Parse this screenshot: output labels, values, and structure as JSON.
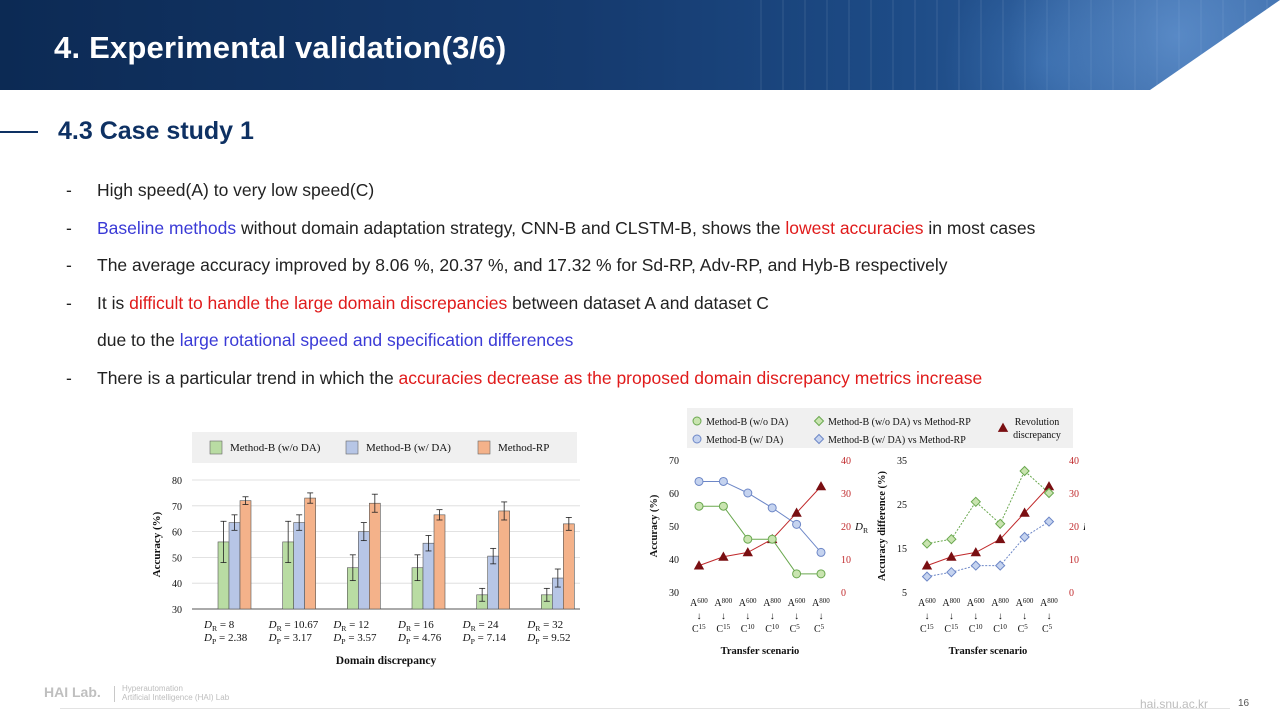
{
  "header": {
    "title": "4. Experimental validation(3/6)"
  },
  "section": {
    "title": "4.3 Case study 1"
  },
  "bullets": [
    {
      "dash": "-",
      "segments": [
        {
          "text": "High speed(A) to very low speed(C)",
          "style": "normal"
        }
      ]
    },
    {
      "dash": "-",
      "segments": [
        {
          "text": "Baseline methods",
          "style": "blue"
        },
        {
          "text": " without domain adaptation strategy, CNN-B and CLSTM-B, shows the ",
          "style": "normal"
        },
        {
          "text": "lowest accuracies",
          "style": "red"
        },
        {
          "text": " in most cases",
          "style": "normal"
        }
      ]
    },
    {
      "dash": "-",
      "segments": [
        {
          "text": "The average accuracy improved by 8.06 %, 20.37 %, and 17.32 % for Sd-RP, Adv-RP, and Hyb-B respectively",
          "style": "normal"
        }
      ]
    },
    {
      "dash": "-",
      "segments": [
        {
          "text": " It is ",
          "style": "normal"
        },
        {
          "text": "difficult to handle the large domain discrepancies",
          "style": "red"
        },
        {
          "text": " between dataset A and dataset C",
          "style": "normal"
        }
      ]
    },
    {
      "dash": "",
      "segments": [
        {
          "text": "due to the ",
          "style": "normal"
        },
        {
          "text": "large rotational speed and specification differences",
          "style": "blue"
        }
      ]
    },
    {
      "dash": "-",
      "segments": [
        {
          "text": "There is a particular trend in which the ",
          "style": "normal"
        },
        {
          "text": "accuracies decrease as the proposed domain discrepancy metrics increase",
          "style": "red"
        }
      ]
    }
  ],
  "chart_data": [
    {
      "type": "bar",
      "legend": [
        "Method-B (w/o DA)",
        "Method-B (w/ DA)",
        "Method-RP"
      ],
      "colors": [
        "#b9dca3",
        "#b7c6e6",
        "#f4b28a"
      ],
      "categories": [
        [
          "D_R = 8",
          "D_P = 2.38"
        ],
        [
          "D_R = 10.67",
          "D_P = 3.17"
        ],
        [
          "D_R = 12",
          "D_P = 3.57"
        ],
        [
          "D_R = 16",
          "D_P = 4.76"
        ],
        [
          "D_R = 24",
          "D_P = 7.14"
        ],
        [
          "D_R = 32",
          "D_P = 9.52"
        ]
      ],
      "series": [
        {
          "name": "Method-B (w/o DA)",
          "values": [
            56,
            56,
            46,
            46,
            35.5,
            35.5
          ],
          "errors": [
            8,
            8,
            5,
            5,
            2.5,
            2.5
          ]
        },
        {
          "name": "Method-B (w/ DA)",
          "values": [
            63.5,
            63.5,
            60,
            55.5,
            50.5,
            42
          ],
          "errors": [
            3,
            3,
            3.5,
            3,
            3,
            3.5
          ]
        },
        {
          "name": "Method-RP",
          "values": [
            72,
            73,
            71,
            66.5,
            68,
            63
          ],
          "errors": [
            1.5,
            2,
            3.5,
            2,
            3.5,
            2.5
          ]
        }
      ],
      "xlabel": "Domain discrepancy",
      "ylabel": "Accuracy (%)",
      "ylim": [
        30,
        80
      ],
      "yticks": [
        30,
        40,
        50,
        60,
        70,
        80
      ]
    },
    {
      "type": "line",
      "legend": [
        "Method-B (w/o DA)",
        "Method-B (w/ DA)",
        "Method-B (w/o DA) vs Method-RP",
        "Method-B (w/ DA) vs Method-RP",
        "Revolution discrepancy"
      ],
      "x_top": [
        "A600",
        "A800",
        "A600",
        "A800",
        "A600",
        "A800"
      ],
      "x_bottom": [
        "C15",
        "C15",
        "C10",
        "C10",
        "C5",
        "C5"
      ],
      "xlabel": "Transfer scenario",
      "left": {
        "ylabel": "Accuracy (%)",
        "ylim": [
          30,
          70
        ],
        "yticks": [
          30,
          40,
          50,
          60,
          70
        ],
        "series": [
          {
            "name": "Method-B (w/o DA)",
            "values": [
              56,
              56,
              46,
              46,
              35.5,
              35.5
            ],
            "color": "#6aa84f",
            "fill": "#c9e4b0"
          },
          {
            "name": "Method-B (w/ DA)",
            "values": [
              63.5,
              63.5,
              60,
              55.5,
              50.5,
              42
            ],
            "color": "#6d87c7",
            "fill": "#c5d3ef"
          }
        ],
        "right_ylabel": "D_R",
        "right_ylim": [
          0,
          40
        ],
        "right_yticks": [
          0,
          10,
          20,
          30,
          40
        ],
        "dr": [
          8,
          10.67,
          12,
          16,
          24,
          32
        ]
      },
      "right": {
        "ylabel": "Accuracy difference (%)",
        "ylim": [
          5,
          35
        ],
        "yticks": [
          5,
          15,
          25,
          35
        ],
        "series": [
          {
            "name": "Method-B (w/o DA) vs Method-RP",
            "values": [
              16,
              17,
              25.5,
              20.5,
              32.5,
              27.5
            ],
            "color": "#6aa84f",
            "fill": "#c9e4b0"
          },
          {
            "name": "Method-B (w/ DA) vs Method-RP",
            "values": [
              8.5,
              9.5,
              11,
              11,
              17.5,
              21
            ],
            "color": "#6d87c7",
            "fill": "#c5d3ef"
          }
        ],
        "right_ylabel": "D_R",
        "right_ylim": [
          0,
          40
        ],
        "right_yticks": [
          0,
          10,
          20,
          30,
          40
        ],
        "dr": [
          8,
          10.67,
          12,
          16,
          24,
          32
        ]
      },
      "dr_color": "#c0292b",
      "dr_marker_color": "#7a0f12"
    }
  ],
  "footer": {
    "logo": "HAI Lab.",
    "sub1": "Hyperautomation",
    "sub2": "Artificial Intelligence (HAI) Lab",
    "url": "hai.snu.ac.kr",
    "page": "16"
  }
}
